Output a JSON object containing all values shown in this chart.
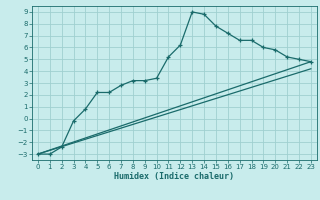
{
  "xlabel": "Humidex (Indice chaleur)",
  "bg_color": "#c8ecec",
  "line_color": "#1a6b6b",
  "grid_color": "#a0d0d0",
  "xlim": [
    -0.5,
    23.5
  ],
  "ylim": [
    -3.5,
    9.5
  ],
  "xticks": [
    0,
    1,
    2,
    3,
    4,
    5,
    6,
    7,
    8,
    9,
    10,
    11,
    12,
    13,
    14,
    15,
    16,
    17,
    18,
    19,
    20,
    21,
    22,
    23
  ],
  "yticks": [
    -3,
    -2,
    -1,
    0,
    1,
    2,
    3,
    4,
    5,
    6,
    7,
    8,
    9
  ],
  "humidex_x": [
    0,
    1,
    2,
    3,
    4,
    5,
    6,
    7,
    8,
    9,
    10,
    11,
    12,
    13,
    14,
    15,
    16,
    17,
    18,
    19,
    20,
    21,
    22,
    23
  ],
  "humidex_y": [
    -3,
    -3,
    -2.4,
    -0.2,
    0.8,
    2.2,
    2.2,
    2.8,
    3.2,
    3.2,
    3.4,
    5.2,
    6.2,
    9.0,
    8.8,
    7.8,
    7.2,
    6.6,
    6.6,
    6.0,
    5.8,
    5.2,
    5.0,
    4.8
  ],
  "line2_x": [
    0,
    23
  ],
  "line2_y": [
    -3,
    4.8
  ],
  "line3_x": [
    0,
    23
  ],
  "line3_y": [
    -3,
    4.2
  ]
}
